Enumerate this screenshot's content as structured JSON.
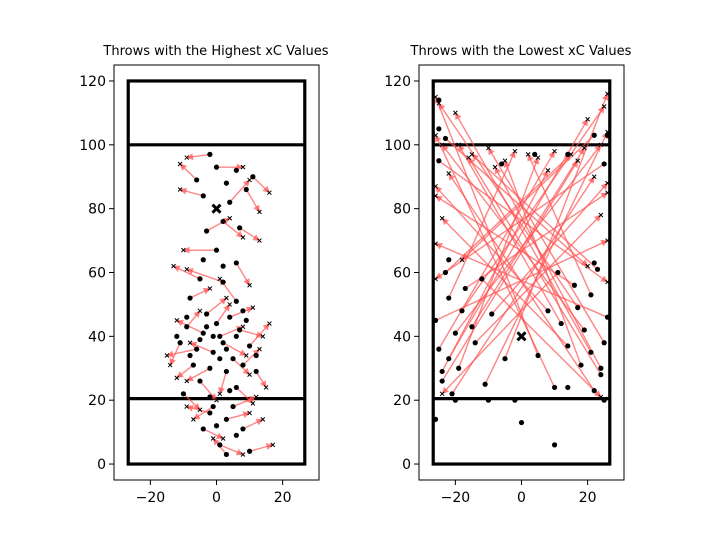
{
  "chart_data": [
    {
      "type": "scatter",
      "title": "Throws with the Highest xC Values",
      "xlim": [
        -31,
        31
      ],
      "ylim": [
        -5,
        125
      ],
      "xticks": [
        -20,
        0,
        20
      ],
      "xtick_labels": [
        "−20",
        "0",
        "20"
      ],
      "yticks": [
        0,
        20,
        40,
        60,
        80,
        100,
        120
      ],
      "ytick_labels": [
        "0",
        "20",
        "40",
        "60",
        "80",
        "100",
        "120"
      ],
      "field": {
        "x": [
          -26.7,
          26.7
        ],
        "y": [
          0,
          120
        ],
        "endzone_lines": [
          20.5,
          100
        ]
      },
      "mean_marker": {
        "x": 0,
        "y": 80
      },
      "colors": {
        "arrow": "#ff5050",
        "point": "#000000"
      },
      "throws": [
        {
          "x0": -1,
          "y0": 35,
          "x1": -8,
          "y1": 38
        },
        {
          "x0": 2,
          "y0": 38,
          "x1": 9,
          "y1": 34
        },
        {
          "x0": -4,
          "y0": 41,
          "x1": -12,
          "y1": 45
        },
        {
          "x0": 5,
          "y0": 33,
          "x1": 10,
          "y1": 28
        },
        {
          "x0": -2,
          "y0": 30,
          "x1": -9,
          "y1": 26
        },
        {
          "x0": 7,
          "y0": 42,
          "x1": 14,
          "y1": 40
        },
        {
          "x0": 0,
          "y0": 44,
          "x1": 4,
          "y1": 50
        },
        {
          "x0": -6,
          "y0": 36,
          "x1": -15,
          "y1": 34
        },
        {
          "x0": 3,
          "y0": 29,
          "x1": 1,
          "y1": 22
        },
        {
          "x0": -9,
          "y0": 43,
          "x1": -5,
          "y1": 48
        },
        {
          "x0": 10,
          "y0": 37,
          "x1": 16,
          "y1": 44
        },
        {
          "x0": -3,
          "y0": 47,
          "x1": 3,
          "y1": 52
        },
        {
          "x0": 4,
          "y0": 46,
          "x1": 11,
          "y1": 49
        },
        {
          "x0": -7,
          "y0": 31,
          "x1": -12,
          "y1": 27
        },
        {
          "x0": 1,
          "y0": 40,
          "x1": 8,
          "y1": 43
        },
        {
          "x0": -11,
          "y0": 38,
          "x1": -14,
          "y1": 31
        },
        {
          "x0": 8,
          "y0": 31,
          "x1": 13,
          "y1": 36
        },
        {
          "x0": -5,
          "y0": 26,
          "x1": 0,
          "y1": 20
        },
        {
          "x0": 6,
          "y0": 24,
          "x1": 11,
          "y1": 19
        },
        {
          "x0": -1,
          "y0": 18,
          "x1": -7,
          "y1": 14
        },
        {
          "x0": 3,
          "y0": 14,
          "x1": 10,
          "y1": 16
        },
        {
          "x0": -4,
          "y0": 11,
          "x1": 2,
          "y1": 8
        },
        {
          "x0": 1,
          "y0": 6,
          "x1": 8,
          "y1": 3
        },
        {
          "x0": 8,
          "y0": 11,
          "x1": 14,
          "y1": 14
        },
        {
          "x0": -2,
          "y0": 16,
          "x1": -9,
          "y1": 18
        },
        {
          "x0": 5,
          "y0": 18,
          "x1": 12,
          "y1": 21
        },
        {
          "x0": 2,
          "y0": 57,
          "x1": -9,
          "y1": 61
        },
        {
          "x0": -5,
          "y0": 58,
          "x1": -13,
          "y1": 62
        },
        {
          "x0": 6,
          "y0": 63,
          "x1": 10,
          "y1": 56
        },
        {
          "x0": 0,
          "y0": 67,
          "x1": -10,
          "y1": 67
        },
        {
          "x0": -3,
          "y0": 73,
          "x1": 4,
          "y1": 77
        },
        {
          "x0": 7,
          "y0": 74,
          "x1": 13,
          "y1": 70
        },
        {
          "x0": 4,
          "y0": 82,
          "x1": 10,
          "y1": 89
        },
        {
          "x0": -6,
          "y0": 89,
          "x1": -11,
          "y1": 94
        },
        {
          "x0": 0,
          "y0": 93,
          "x1": 8,
          "y1": 93
        },
        {
          "x0": -4,
          "y0": 84,
          "x1": -11,
          "y1": 86
        },
        {
          "x0": 9,
          "y0": 86,
          "x1": 13,
          "y1": 79
        },
        {
          "x0": 2,
          "y0": 76,
          "x1": 8,
          "y1": 71
        },
        {
          "x0": -2,
          "y0": 97,
          "x1": -9,
          "y1": 96
        },
        {
          "x0": 11,
          "y0": 90,
          "x1": 16,
          "y1": 85
        },
        {
          "x0": -8,
          "y0": 52,
          "x1": -2,
          "y1": 55
        },
        {
          "x0": 6,
          "y0": 51,
          "x1": 1,
          "y1": 58
        },
        {
          "x0": 12,
          "y0": 29,
          "x1": 15,
          "y1": 24
        },
        {
          "x0": -10,
          "y0": 22,
          "x1": -5,
          "y1": 17
        },
        {
          "x0": 3,
          "y0": 3,
          "x1": -1,
          "y1": 8
        },
        {
          "x0": 10,
          "y0": 4,
          "x1": 17,
          "y1": 6
        }
      ],
      "extra_points": [
        {
          "x": -1,
          "y": 40
        },
        {
          "x": 3,
          "y": 36
        },
        {
          "x": -5,
          "y": 39
        },
        {
          "x": 1,
          "y": 33
        },
        {
          "x": -3,
          "y": 43
        },
        {
          "x": 6,
          "y": 40
        },
        {
          "x": -8,
          "y": 34
        },
        {
          "x": 9,
          "y": 45
        },
        {
          "x": -2,
          "y": 21
        },
        {
          "x": 4,
          "y": 23
        },
        {
          "x": 0,
          "y": 12
        },
        {
          "x": 6,
          "y": 9
        },
        {
          "x": 2,
          "y": 62
        },
        {
          "x": -4,
          "y": 64
        },
        {
          "x": 3,
          "y": 88
        },
        {
          "x": 6,
          "y": 92
        },
        {
          "x": 8,
          "y": 48
        },
        {
          "x": -9,
          "y": 46
        },
        {
          "x": 12,
          "y": 34
        },
        {
          "x": -12,
          "y": 40
        }
      ]
    },
    {
      "type": "scatter",
      "title": "Throws with the Lowest xC Values",
      "xlim": [
        -31,
        31
      ],
      "ylim": [
        -5,
        125
      ],
      "xticks": [
        -20,
        0,
        20
      ],
      "xtick_labels": [
        "−20",
        "0",
        "20"
      ],
      "yticks": [
        0,
        20,
        40,
        60,
        80,
        100,
        120
      ],
      "ytick_labels": [
        "0",
        "20",
        "40",
        "60",
        "80",
        "100",
        "120"
      ],
      "field": {
        "x": [
          -26.7,
          26.7
        ],
        "y": [
          0,
          120
        ],
        "endzone_lines": [
          20.5,
          100
        ]
      },
      "mean_marker": {
        "x": 0,
        "y": 40
      },
      "colors": {
        "arrow": "#ff5050",
        "point": "#000000"
      },
      "throws": [
        {
          "x0": -22,
          "y0": 33,
          "x1": 20,
          "y1": 108
        },
        {
          "x0": -20,
          "y0": 41,
          "x1": 24,
          "y1": 100
        },
        {
          "x0": -24,
          "y0": 26,
          "x1": 17,
          "y1": 95
        },
        {
          "x0": -18,
          "y0": 48,
          "x1": 25,
          "y1": 112
        },
        {
          "x0": -25,
          "y0": 36,
          "x1": 10,
          "y1": 98
        },
        {
          "x0": -21,
          "y0": 22,
          "x1": 22,
          "y1": 90
        },
        {
          "x0": -17,
          "y0": 55,
          "x1": 26,
          "y1": 85
        },
        {
          "x0": -23,
          "y0": 60,
          "x1": 15,
          "y1": 97
        },
        {
          "x0": -14,
          "y0": 38,
          "x1": 24,
          "y1": 78
        },
        {
          "x0": -26,
          "y0": 45,
          "x1": 26,
          "y1": 70
        },
        {
          "x0": -19,
          "y0": 30,
          "x1": 5,
          "y1": 96
        },
        {
          "x0": -15,
          "y0": 43,
          "x1": 19,
          "y1": 99
        },
        {
          "x0": -11,
          "y0": 25,
          "x1": 26,
          "y1": 104
        },
        {
          "x0": -22,
          "y0": 52,
          "x1": -2,
          "y1": 98
        },
        {
          "x0": -9,
          "y0": 47,
          "x1": 26,
          "y1": 88
        },
        {
          "x0": -24,
          "y0": 29,
          "x1": 8,
          "y1": 92
        },
        {
          "x0": 21,
          "y0": 35,
          "x1": -20,
          "y1": 110
        },
        {
          "x0": 19,
          "y0": 42,
          "x1": -24,
          "y1": 100
        },
        {
          "x0": 24,
          "y0": 28,
          "x1": -16,
          "y1": 96
        },
        {
          "x0": 17,
          "y0": 49,
          "x1": -25,
          "y1": 113
        },
        {
          "x0": 25,
          "y0": 38,
          "x1": -10,
          "y1": 99
        },
        {
          "x0": 22,
          "y0": 23,
          "x1": -22,
          "y1": 91
        },
        {
          "x0": 16,
          "y0": 56,
          "x1": -26,
          "y1": 84
        },
        {
          "x0": 23,
          "y0": 61,
          "x1": -15,
          "y1": 97
        },
        {
          "x0": 14,
          "y0": 37,
          "x1": -24,
          "y1": 77
        },
        {
          "x0": 26,
          "y0": 46,
          "x1": -26,
          "y1": 69
        },
        {
          "x0": 18,
          "y0": 31,
          "x1": -5,
          "y1": 95
        },
        {
          "x0": 12,
          "y0": 44,
          "x1": -19,
          "y1": 100
        },
        {
          "x0": 10,
          "y0": 24,
          "x1": -26,
          "y1": 103
        },
        {
          "x0": 21,
          "y0": 53,
          "x1": 2,
          "y1": 97
        },
        {
          "x0": 8,
          "y0": 48,
          "x1": -26,
          "y1": 87
        },
        {
          "x0": 24,
          "y0": 30,
          "x1": -8,
          "y1": 93
        },
        {
          "x0": -25,
          "y0": 95,
          "x1": 26,
          "y1": 57
        },
        {
          "x0": 25,
          "y0": 94,
          "x1": -26,
          "y1": 58
        },
        {
          "x0": -12,
          "y0": 58,
          "x1": 24,
          "y1": 21
        },
        {
          "x0": 11,
          "y0": 60,
          "x1": -24,
          "y1": 22
        },
        {
          "x0": -23,
          "y0": 102,
          "x1": 20,
          "y1": 62
        },
        {
          "x0": 22,
          "y0": 103,
          "x1": -18,
          "y1": 64
        },
        {
          "x0": -5,
          "y0": 33,
          "x1": 26,
          "y1": 116
        },
        {
          "x0": 5,
          "y0": 34,
          "x1": -26,
          "y1": 115
        }
      ],
      "extra_points": [
        {
          "x": -26,
          "y": 14
        },
        {
          "x": -20,
          "y": 20
        },
        {
          "x": -10,
          "y": 20
        },
        {
          "x": -2,
          "y": 20
        },
        {
          "x": 0,
          "y": 13
        },
        {
          "x": 10,
          "y": 6
        },
        {
          "x": 25,
          "y": 20
        },
        {
          "x": 14,
          "y": 24
        },
        {
          "x": -25,
          "y": 105
        },
        {
          "x": 26,
          "y": 103
        },
        {
          "x": -25,
          "y": 114
        },
        {
          "x": -6,
          "y": 94
        },
        {
          "x": 4,
          "y": 97
        },
        {
          "x": 14,
          "y": 97
        },
        {
          "x": -22,
          "y": 64
        },
        {
          "x": 22,
          "y": 63
        }
      ]
    }
  ]
}
